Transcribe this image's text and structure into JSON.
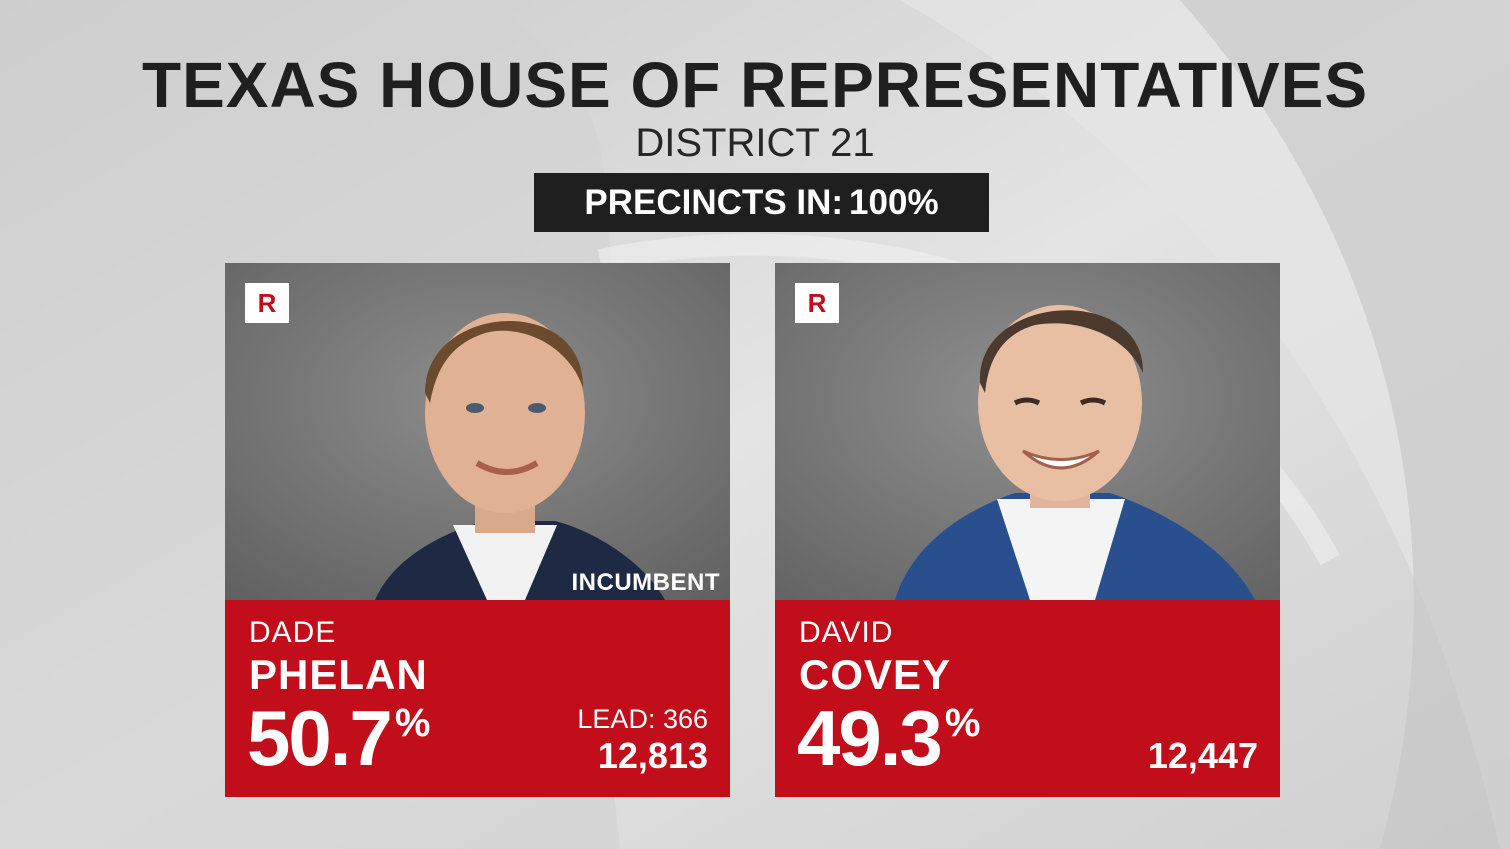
{
  "title": "TEXAS HOUSE OF REPRESENTATIVES",
  "subtitle": "DISTRICT 21",
  "precincts": {
    "label": "PRECINCTS IN:",
    "value": "100%"
  },
  "colors": {
    "party_red": "#c20e1a",
    "dark": "#1f1f1f",
    "background": "#d6d6d6"
  },
  "candidates": [
    {
      "party": "R",
      "first_name": "DADE",
      "last_name": "PHELAN",
      "percent": "50.7",
      "percent_sign": "%",
      "lead": "LEAD: 366",
      "votes": "12,813",
      "tag": "INCUMBENT",
      "photo": "candidate-photo-man-dark-suit-white-shirt"
    },
    {
      "party": "R",
      "first_name": "DAVID",
      "last_name": "COVEY",
      "percent": "49.3",
      "percent_sign": "%",
      "votes": "12,447",
      "photo": "candidate-photo-man-blue-blazer-smiling"
    }
  ]
}
